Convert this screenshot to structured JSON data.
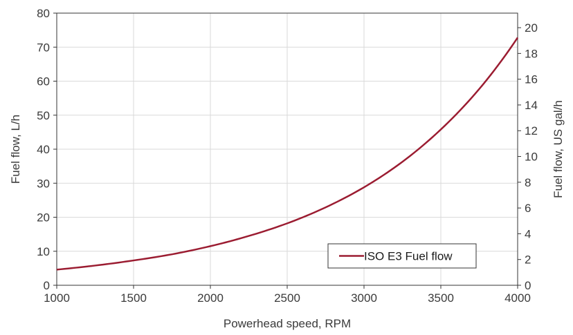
{
  "chart_data": {
    "type": "line",
    "title": "",
    "xlabel": "Powerhead speed, RPM",
    "ylabel": "Fuel flow, L/h",
    "y2label": "Fuel flow, US gal/h",
    "xlim": [
      1000,
      4000
    ],
    "ylim": [
      0,
      80
    ],
    "y2lim": [
      0,
      21.13
    ],
    "x_ticks": [
      "1000",
      "1500",
      "2000",
      "2500",
      "3000",
      "3500",
      "4000"
    ],
    "y_ticks": [
      "0",
      "10",
      "20",
      "30",
      "40",
      "50",
      "60",
      "70",
      "80"
    ],
    "y2_ticks": [
      "0",
      "2",
      "4",
      "6",
      "8",
      "10",
      "12",
      "14",
      "16",
      "18",
      "20"
    ],
    "grid": true,
    "legend_position": "bottom-right",
    "series": [
      {
        "name": "ISO E3 Fuel flow",
        "color": "#9b1c31",
        "x": [
          1000,
          1250,
          1500,
          1750,
          2000,
          2250,
          2500,
          2750,
          3000,
          3250,
          3500,
          3750,
          4000
        ],
        "y": [
          4.6,
          5.8,
          7.3,
          9.1,
          11.5,
          14.5,
          18.2,
          22.9,
          28.8,
          36.3,
          45.8,
          57.7,
          72.8
        ]
      }
    ]
  }
}
